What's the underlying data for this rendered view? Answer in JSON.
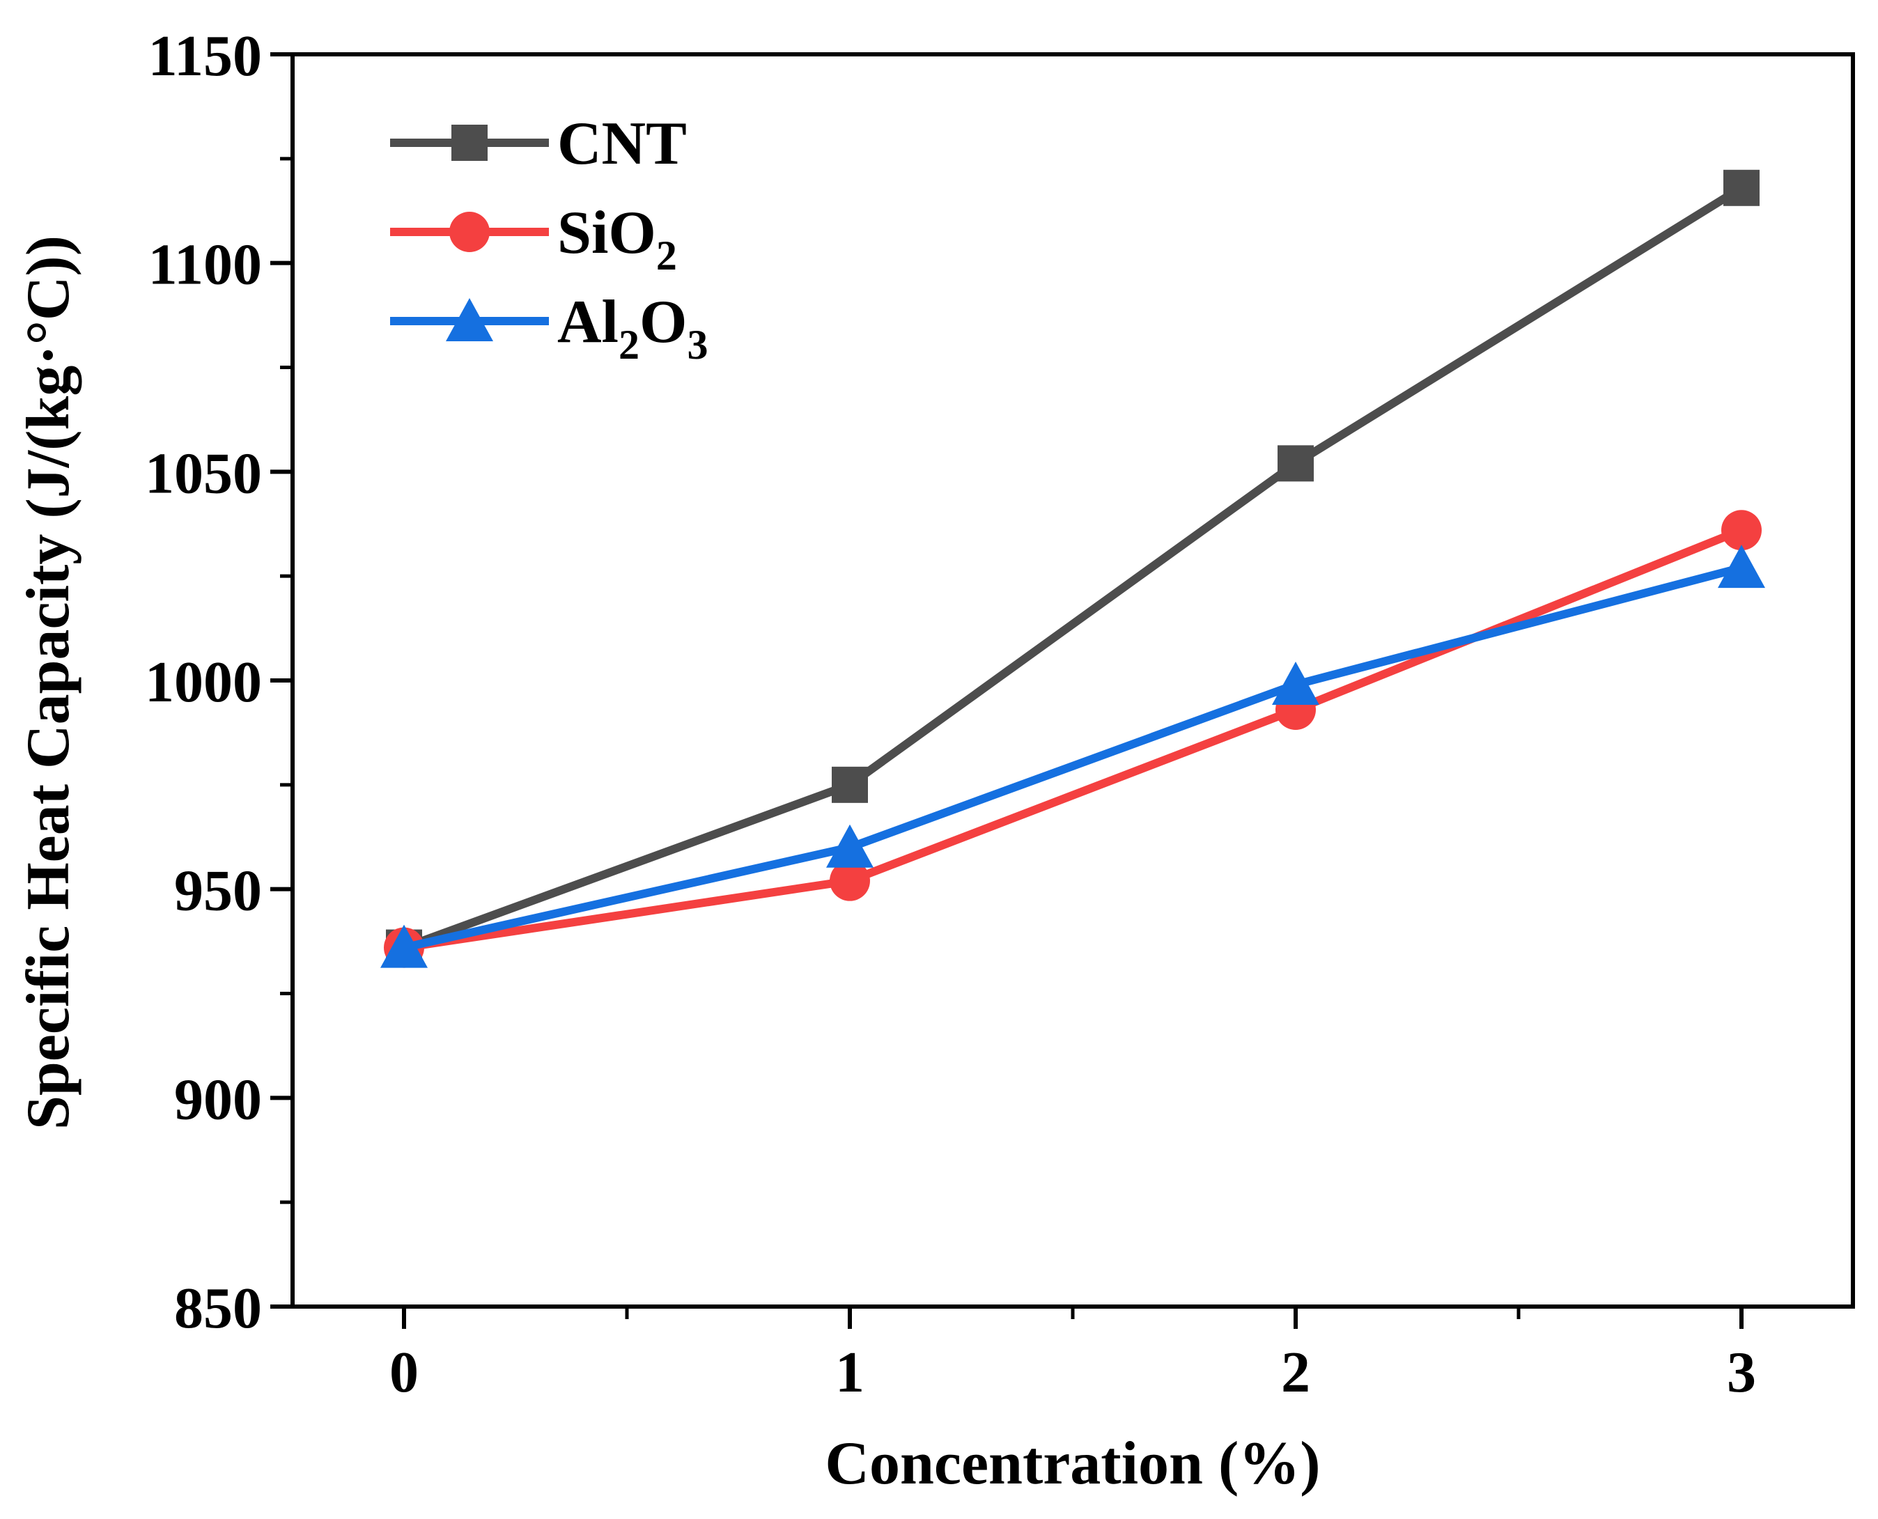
{
  "chart_data": {
    "type": "line",
    "title": "",
    "xlabel": "Concentration (%)",
    "ylabel": "Specific Heat Capacity (J/(kg·°C))",
    "x": [
      0,
      1,
      2,
      3
    ],
    "xticks": [
      "0",
      "1",
      "2",
      "3"
    ],
    "yticks": [
      "850",
      "900",
      "950",
      "1000",
      "1050",
      "1100",
      "1150"
    ],
    "xlim": [
      -0.25,
      3.25
    ],
    "ylim": [
      850,
      1150
    ],
    "grid": false,
    "legend_position": "top-left",
    "series": [
      {
        "name": "CNT",
        "label_base": "CNT",
        "label_parts": [],
        "marker": "square",
        "color": "#4d4d4d",
        "values": [
          936,
          975,
          1052,
          1118
        ]
      },
      {
        "name": "SiO2",
        "label_base": "SiO",
        "label_parts": [
          {
            "sub": "2"
          }
        ],
        "marker": "circle",
        "color": "#f44040",
        "values": [
          936,
          952,
          993,
          1036
        ]
      },
      {
        "name": "Al2O3",
        "label_base": "Al",
        "label_parts": [
          {
            "sub": "2"
          },
          {
            "text": "O"
          },
          {
            "sub": "3"
          }
        ],
        "marker": "triangle",
        "color": "#1570e0",
        "values": [
          936,
          960,
          999,
          1027
        ]
      }
    ]
  }
}
